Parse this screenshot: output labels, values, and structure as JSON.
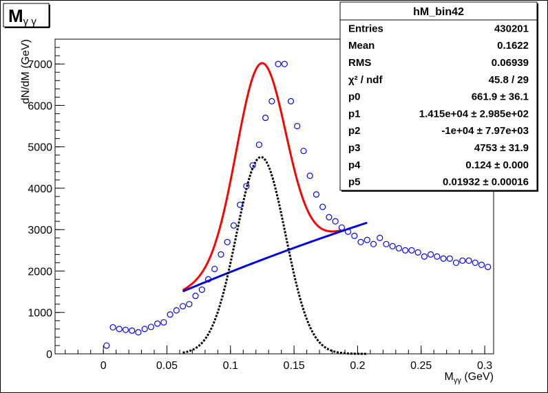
{
  "hist_title": {
    "main": "M",
    "sub": "γ γ"
  },
  "stats_box": {
    "title": "hM_bin42",
    "rows": [
      {
        "label": "Entries",
        "value": "430201"
      },
      {
        "label": "Mean",
        "value": "0.1622"
      },
      {
        "label": "RMS",
        "value": "0.06939"
      },
      {
        "label": "χ² / ndf",
        "value": "45.8 / 29"
      },
      {
        "label": "p0",
        "value": "661.9 ± 36.1"
      },
      {
        "label": "p1",
        "value": "1.415e+04 ± 2.985e+02"
      },
      {
        "label": "p2",
        "value": "-1e+04 ± 7.97e+03"
      },
      {
        "label": "p3",
        "value": "4753 ± 31.9"
      },
      {
        "label": "p4",
        "value": "0.124 ± 0.000"
      },
      {
        "label": "p5",
        "value": "0.01932 ± 0.00016"
      }
    ]
  },
  "colors": {
    "points": "#0000ff",
    "total_fit": "#ff0000",
    "background_fit": "#0000dd",
    "signal": "#000000"
  },
  "chart_data": {
    "type": "scatter",
    "xlabel_main": "M",
    "xlabel_sub": "γγ",
    "xlabel_unit": " (GeV)",
    "ylabel": "dN/dM (GeV)",
    "xlim": [
      -0.038,
      0.307
    ],
    "ylim": [
      0,
      7600
    ],
    "x_ticks": [
      0,
      0.05,
      0.1,
      0.15,
      0.2,
      0.25,
      0.3
    ],
    "x_tick_labels": [
      "0",
      "0.05",
      "0.1",
      "0.15",
      "0.2",
      "0.25",
      "0.3"
    ],
    "y_ticks": [
      0,
      1000,
      2000,
      3000,
      4000,
      5000,
      6000,
      7000
    ],
    "y_tick_labels": [
      "0",
      "1000",
      "2000",
      "3000",
      "4000",
      "5000",
      "6000",
      "7000"
    ],
    "grid": false,
    "legend": "none",
    "series": [
      {
        "kind": "points",
        "x": [
          0.0025,
          0.0075,
          0.0125,
          0.0175,
          0.0225,
          0.0275,
          0.0325,
          0.0375,
          0.0425,
          0.0475,
          0.0525,
          0.0575,
          0.0625,
          0.0675,
          0.0725,
          0.0775,
          0.0825,
          0.0875,
          0.0925,
          0.0975,
          0.1025,
          0.1075,
          0.1125,
          0.1175,
          0.1225,
          0.1275,
          0.1325,
          0.1375,
          0.1425,
          0.1475,
          0.1525,
          0.1575,
          0.1625,
          0.1675,
          0.1725,
          0.1775,
          0.1825,
          0.1875,
          0.1925,
          0.1975,
          0.2025,
          0.2075,
          0.2125,
          0.2175,
          0.2225,
          0.2275,
          0.2325,
          0.2375,
          0.2425,
          0.2475,
          0.2525,
          0.2575,
          0.2625,
          0.2675,
          0.2725,
          0.2775,
          0.2825,
          0.2875,
          0.2925,
          0.2975,
          0.3025,
          0.3075
        ],
        "y": [
          200,
          640,
          600,
          580,
          560,
          520,
          600,
          650,
          730,
          760,
          950,
          1050,
          1150,
          1200,
          1400,
          1550,
          1800,
          2050,
          2400,
          2700,
          3100,
          3600,
          4050,
          4550,
          5050,
          5700,
          6100,
          7000,
          7000,
          6100,
          5500,
          4900,
          4300,
          3850,
          3550,
          3300,
          3200,
          3050,
          2950,
          2850,
          2700,
          2750,
          2650,
          2800,
          2650,
          2600,
          2550,
          2500,
          2500,
          2450,
          2350,
          2400,
          2350,
          2300,
          2300,
          2200,
          2250,
          2250,
          2200,
          2150,
          2100,
          2050
        ]
      },
      {
        "kind": "total_fit",
        "x_range": [
          0.0625,
          0.1875
        ]
      },
      {
        "kind": "background_fit",
        "x_range": [
          0.0625,
          0.2075
        ]
      },
      {
        "kind": "signal_gaussian",
        "x_range": [
          0.0625,
          0.2075
        ]
      }
    ]
  }
}
